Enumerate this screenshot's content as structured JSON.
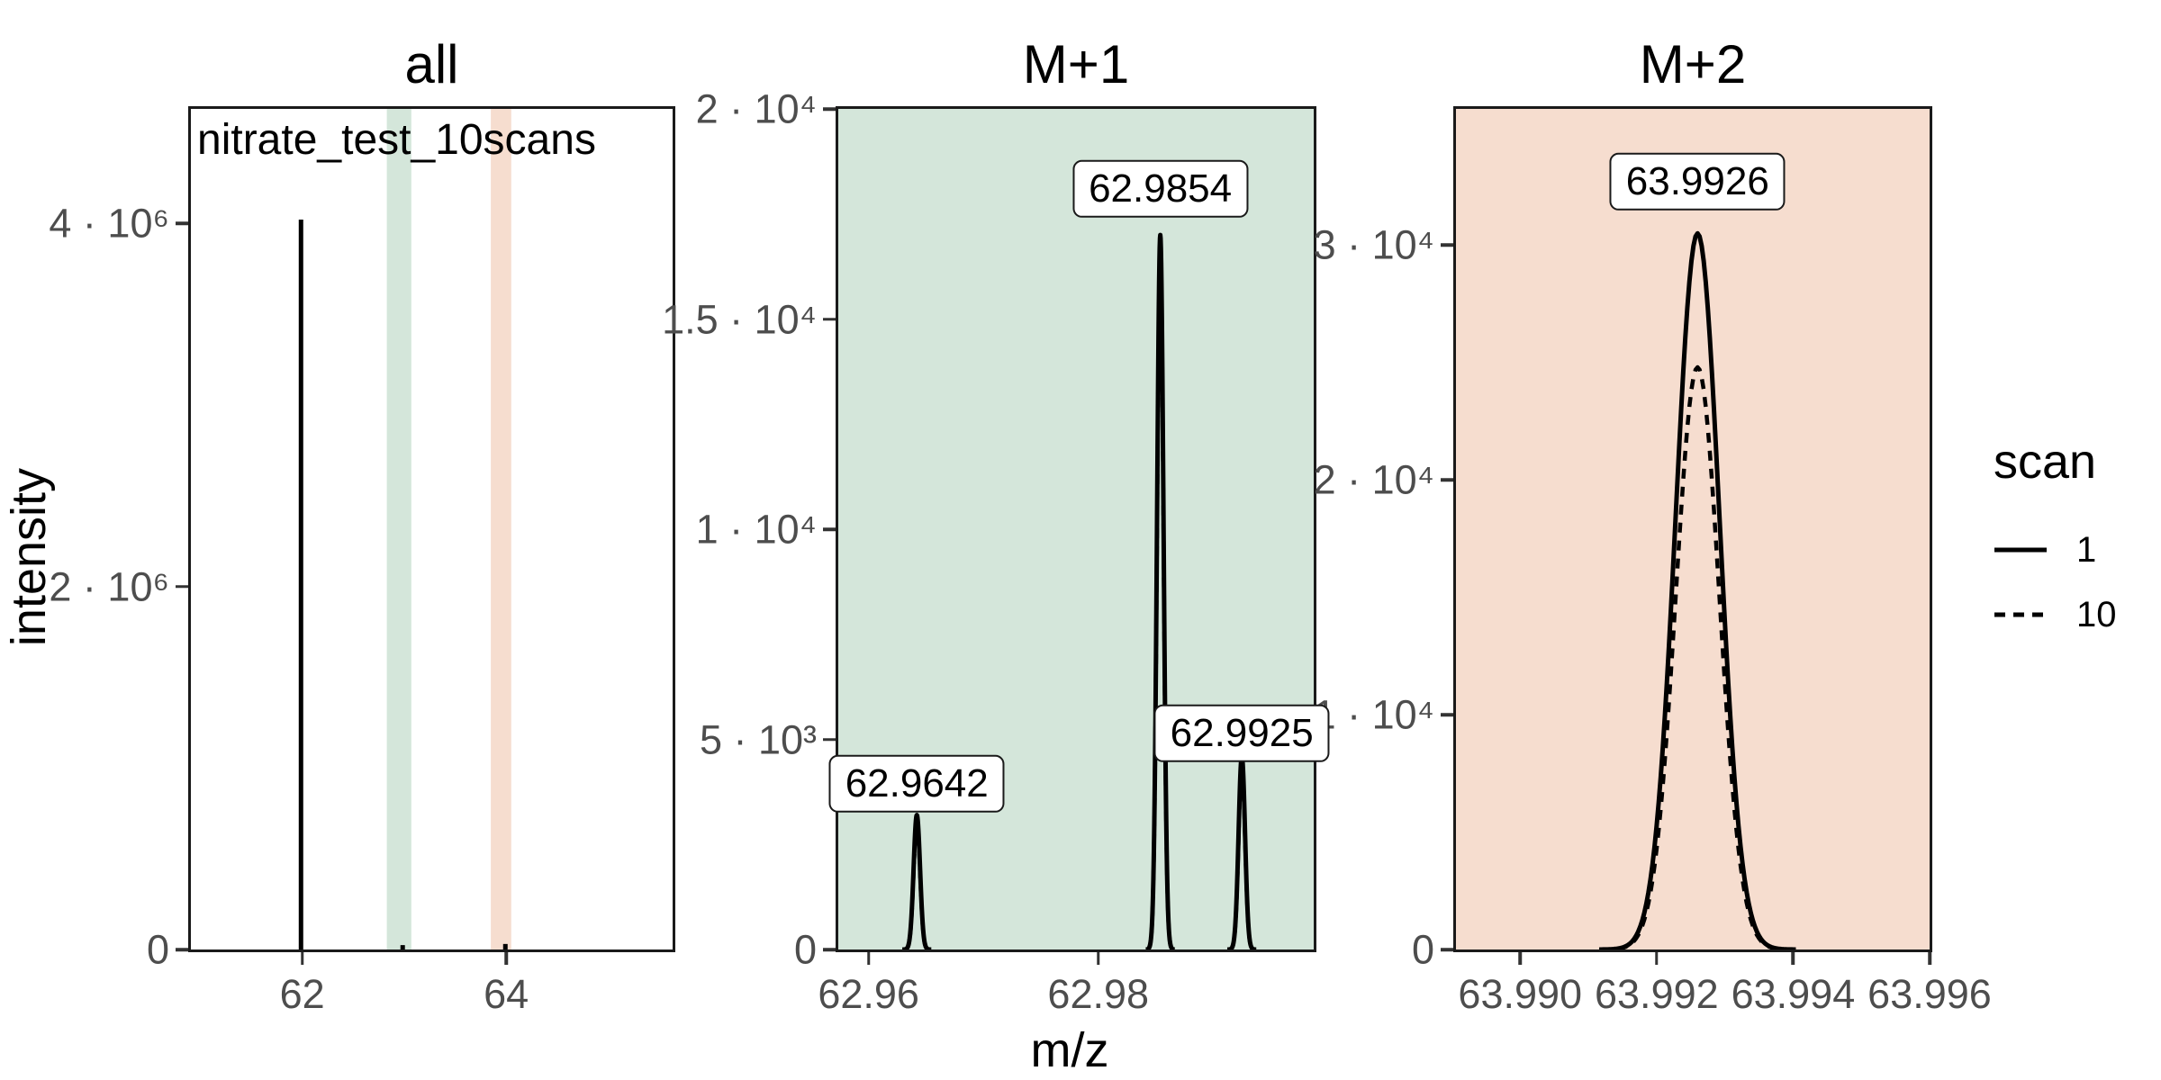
{
  "figure": {
    "background": "#ffffff",
    "axis_text_color": "#4d4d4d",
    "line_color": "#000000"
  },
  "chart_data": {
    "type": "line",
    "xlabel": "m/z",
    "ylabel": "intensity",
    "legend_title": "scan",
    "legend_position": "right",
    "grid": false,
    "series": [
      {
        "name": "1",
        "label": "1",
        "linetype": "solid"
      },
      {
        "name": "10",
        "label": "10",
        "linetype": "dashed"
      }
    ],
    "panels": [
      {
        "id": "all",
        "title": "all",
        "bg": "#ffffff",
        "annotation": "nitrate_test_10scans",
        "x_range": [
          60.908,
          65.633
        ],
        "y_range": [
          0,
          4630000
        ],
        "x_ticks": [
          {
            "v": 62,
            "label": "62"
          },
          {
            "v": 64,
            "label": "64"
          }
        ],
        "y_ticks": [
          {
            "v": 0,
            "label": "0"
          },
          {
            "v": 2000000,
            "label": "2 · 10⁶"
          },
          {
            "v": 4000000,
            "label": "4 · 10⁶"
          }
        ],
        "bands": [
          {
            "from": 62.83,
            "to": 63.07,
            "color": "#d4e6da"
          },
          {
            "from": 63.85,
            "to": 64.05,
            "color": "#f6ddcf"
          }
        ],
        "sticks": [
          {
            "mz": 61.988,
            "heights": {
              "1": 4020000,
              "10": 3980000
            }
          },
          {
            "mz": 62.9854,
            "heights": {
              "1": 24000,
              "10": 23000
            }
          },
          {
            "mz": 63.9926,
            "heights": {
              "1": 30500,
              "10": 24800
            }
          }
        ],
        "peaks": []
      },
      {
        "id": "m1",
        "title": "M+1",
        "bg": "#d4e6da",
        "annotation": null,
        "x_range": [
          62.95736,
          62.99876
        ],
        "y_range": [
          0,
          20000
        ],
        "x_ticks": [
          {
            "v": 62.96,
            "label": "62.96"
          },
          {
            "v": 62.98,
            "label": "62.98"
          }
        ],
        "y_ticks": [
          {
            "v": 0,
            "label": "0"
          },
          {
            "v": 5000,
            "label": "5 · 10³"
          },
          {
            "v": 10000,
            "label": "1 · 10⁴"
          },
          {
            "v": 15000,
            "label": "1.5 · 10⁴"
          },
          {
            "v": 20000,
            "label": "2 · 10⁴"
          }
        ],
        "bands": [],
        "sticks": [],
        "peaks": [
          {
            "mz": 62.9642,
            "sigma": 0.00028,
            "heights": {
              "1": 3200,
              "10": 3050
            },
            "label": "62.9642",
            "label_y": 3950
          },
          {
            "mz": 62.9854,
            "sigma": 0.00028,
            "heights": {
              "1": 17000,
              "10": 16600
            },
            "label": "62.9854",
            "label_y": 18100
          },
          {
            "mz": 62.9925,
            "sigma": 0.00028,
            "heights": {
              "1": 4600,
              "10": 4400
            },
            "label": "62.9925",
            "label_y": 5140
          }
        ]
      },
      {
        "id": "m2",
        "title": "M+2",
        "bg": "#f6ddcf",
        "annotation": null,
        "x_range": [
          63.98906,
          63.996
        ],
        "y_range": [
          0,
          35800
        ],
        "x_ticks": [
          {
            "v": 63.99,
            "label": "63.990"
          },
          {
            "v": 63.992,
            "label": "63.992"
          },
          {
            "v": 63.994,
            "label": "63.994"
          },
          {
            "v": 63.996,
            "label": "63.996"
          }
        ],
        "y_ticks": [
          {
            "v": 0,
            "label": "0"
          },
          {
            "v": 10000,
            "label": "1 · 10⁴"
          },
          {
            "v": 20000,
            "label": "2 · 10⁴"
          },
          {
            "v": 30000,
            "label": "3 · 10⁴"
          }
        ],
        "bands": [],
        "sticks": [],
        "peaks": [
          {
            "mz": 63.9926,
            "sigma": 0.00032,
            "heights": {
              "1": 30500,
              "10": 24800
            },
            "label": "63.9926",
            "label_y": 32700
          }
        ]
      }
    ]
  }
}
